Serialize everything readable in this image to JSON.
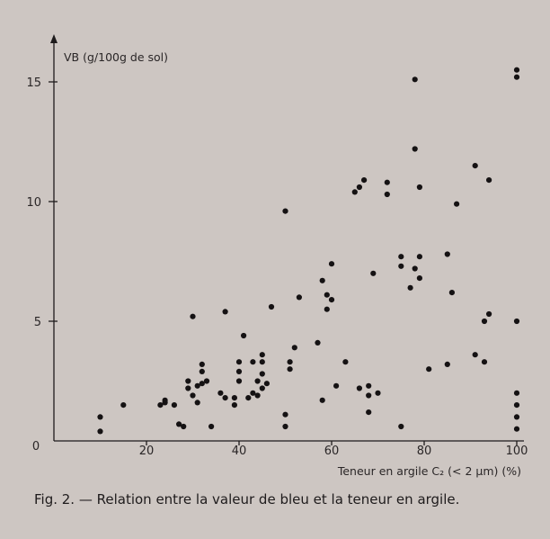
{
  "caption": "Fig. 2. — Relation entre la valeur de bleu et la teneur en argile.",
  "chart_data": {
    "type": "scatter",
    "title": "",
    "ylabel": "VB (g/100g de sol)",
    "xlabel": "Teneur en argile C₂ (< 2 µm) (%)",
    "xlim": [
      0,
      100
    ],
    "ylim": [
      0,
      16
    ],
    "x_ticks": [
      20,
      40,
      60,
      80,
      100
    ],
    "y_ticks": [
      5,
      10,
      15
    ],
    "origin_label": "0",
    "grid": false,
    "legend": "none",
    "point_color": "#151213",
    "points": [
      [
        10,
        1.0
      ],
      [
        10,
        0.4
      ],
      [
        15,
        1.5
      ],
      [
        23,
        1.5
      ],
      [
        24,
        1.6
      ],
      [
        24,
        1.7
      ],
      [
        26,
        1.5
      ],
      [
        27,
        0.7
      ],
      [
        28,
        0.6
      ],
      [
        29,
        2.5
      ],
      [
        29,
        2.2
      ],
      [
        30,
        5.2
      ],
      [
        30,
        1.9
      ],
      [
        31,
        2.3
      ],
      [
        31,
        1.6
      ],
      [
        32,
        3.2
      ],
      [
        32,
        2.9
      ],
      [
        32,
        2.4
      ],
      [
        33,
        2.5
      ],
      [
        34,
        0.6
      ],
      [
        36,
        2.0
      ],
      [
        37,
        5.4
      ],
      [
        37,
        1.8
      ],
      [
        39,
        1.8
      ],
      [
        39,
        1.5
      ],
      [
        40,
        3.3
      ],
      [
        40,
        2.9
      ],
      [
        40,
        2.5
      ],
      [
        41,
        4.4
      ],
      [
        42,
        1.8
      ],
      [
        43,
        3.3
      ],
      [
        43,
        2.0
      ],
      [
        44,
        2.5
      ],
      [
        44,
        1.9
      ],
      [
        45,
        3.6
      ],
      [
        45,
        3.3
      ],
      [
        45,
        2.8
      ],
      [
        45,
        2.2
      ],
      [
        46,
        2.4
      ],
      [
        47,
        5.6
      ],
      [
        50,
        9.6
      ],
      [
        50,
        1.1
      ],
      [
        50,
        0.6
      ],
      [
        51,
        3.3
      ],
      [
        51,
        3.0
      ],
      [
        52,
        3.9
      ],
      [
        53,
        6.0
      ],
      [
        57,
        4.1
      ],
      [
        58,
        1.7
      ],
      [
        58,
        6.7
      ],
      [
        59,
        6.1
      ],
      [
        59,
        5.5
      ],
      [
        60,
        7.4
      ],
      [
        60,
        5.9
      ],
      [
        61,
        2.3
      ],
      [
        63,
        3.3
      ],
      [
        65,
        10.4
      ],
      [
        66,
        10.6
      ],
      [
        66,
        2.2
      ],
      [
        67,
        10.9
      ],
      [
        68,
        2.3
      ],
      [
        68,
        1.9
      ],
      [
        68,
        1.2
      ],
      [
        69,
        7.0
      ],
      [
        70,
        2.0
      ],
      [
        72,
        10.8
      ],
      [
        72,
        10.3
      ],
      [
        75,
        7.7
      ],
      [
        75,
        7.3
      ],
      [
        75,
        0.6
      ],
      [
        77,
        6.4
      ],
      [
        78,
        15.1
      ],
      [
        78,
        12.2
      ],
      [
        78,
        7.2
      ],
      [
        79,
        10.6
      ],
      [
        79,
        7.7
      ],
      [
        79,
        6.8
      ],
      [
        81,
        3.0
      ],
      [
        85,
        3.2
      ],
      [
        85,
        7.8
      ],
      [
        86,
        6.2
      ],
      [
        87,
        9.9
      ],
      [
        91,
        11.5
      ],
      [
        91,
        3.6
      ],
      [
        93,
        5.0
      ],
      [
        93,
        3.3
      ],
      [
        94,
        10.9
      ],
      [
        94,
        5.3
      ],
      [
        100,
        15.5
      ],
      [
        100,
        15.2
      ],
      [
        100,
        5.0
      ],
      [
        100,
        2.0
      ],
      [
        100,
        1.5
      ],
      [
        100,
        1.0
      ],
      [
        100,
        0.5
      ]
    ]
  }
}
